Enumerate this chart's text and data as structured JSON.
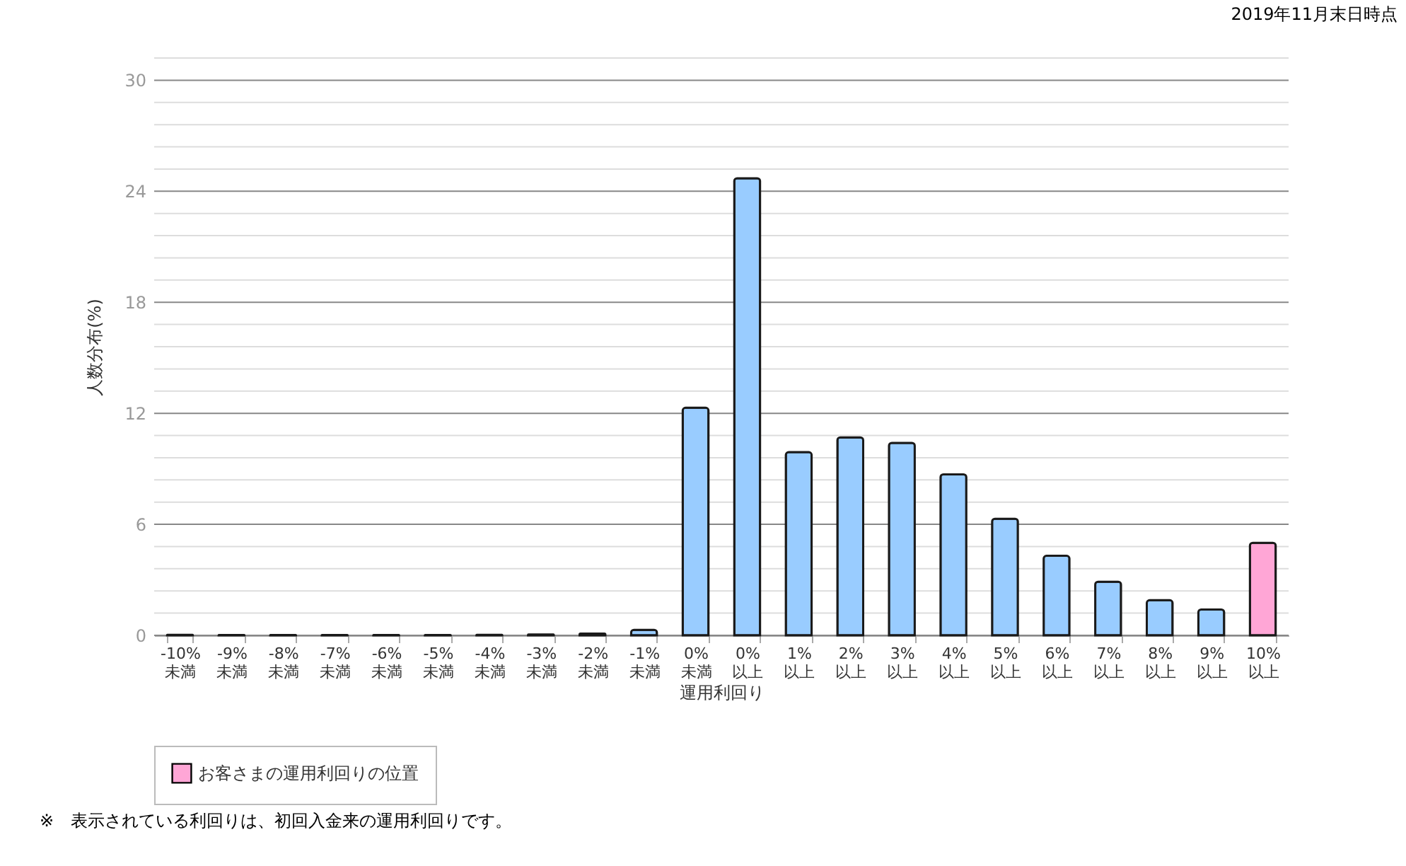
{
  "chart_data": {
    "type": "bar",
    "xlabel": "運用利回り",
    "ylabel": "人数分布(%)",
    "categories": [
      "-10%\n未満",
      "-9%\n未満",
      "-8%\n未満",
      "-7%\n未満",
      "-6%\n未満",
      "-5%\n未満",
      "-4%\n未満",
      "-3%\n未満",
      "-2%\n未満",
      "-1%\n未満",
      "0%\n未満",
      "0%\n以上",
      "1%\n以上",
      "2%\n以上",
      "3%\n以上",
      "4%\n以上",
      "5%\n以上",
      "6%\n以上",
      "7%\n以上",
      "8%\n以上",
      "9%\n以上",
      "10%\n以上"
    ],
    "series": [
      {
        "color": "#99ccff",
        "values": [
          0.03,
          0.02,
          0.02,
          0.02,
          0.02,
          0.02,
          0.03,
          0.05,
          0.1,
          0.3,
          12.3,
          24.7,
          9.9,
          10.7,
          10.4,
          8.7,
          6.3,
          4.3,
          2.9,
          1.9,
          1.4,
          null
        ]
      },
      {
        "name": "お客さまの運用利回りの位置",
        "color": "#ffa6d6",
        "values": [
          null,
          null,
          null,
          null,
          null,
          null,
          null,
          null,
          null,
          null,
          null,
          null,
          null,
          null,
          null,
          null,
          null,
          null,
          null,
          null,
          null,
          5.0
        ]
      }
    ],
    "ylim": [
      0,
      31.2
    ],
    "yticks": [
      0,
      {
        "value": 1.2,
        "label": null
      },
      {
        "value": 2.4,
        "label": null
      },
      {
        "value": 3.6,
        "label": null
      },
      {
        "value": 4.8,
        "label": null
      },
      6,
      {
        "value": 7.2,
        "label": null
      },
      {
        "value": 8.4,
        "label": null
      },
      {
        "value": 9.6,
        "label": null
      },
      {
        "value": 10.8,
        "label": null
      },
      12,
      {
        "value": 13.2,
        "label": null
      },
      {
        "value": 14.4,
        "label": null
      },
      {
        "value": 15.6,
        "label": null
      },
      {
        "value": 16.8,
        "label": null
      },
      18,
      {
        "value": 19.2,
        "label": null
      },
      {
        "value": 20.4,
        "label": null
      },
      {
        "value": 21.6,
        "label": null
      },
      {
        "value": 22.8,
        "label": null
      },
      24,
      {
        "value": 25.2,
        "label": null
      },
      {
        "value": 26.4,
        "label": null
      },
      {
        "value": 27.6,
        "label": null
      },
      {
        "value": 28.8,
        "label": null
      },
      30,
      {
        "value": 31.2,
        "label": null
      }
    ],
    "grid": true,
    "legend": "bottom",
    "annotations": [
      "2019年11月末日時点",
      "※　表示されている利回りは、初回入金来の運用利回りです。"
    ]
  }
}
